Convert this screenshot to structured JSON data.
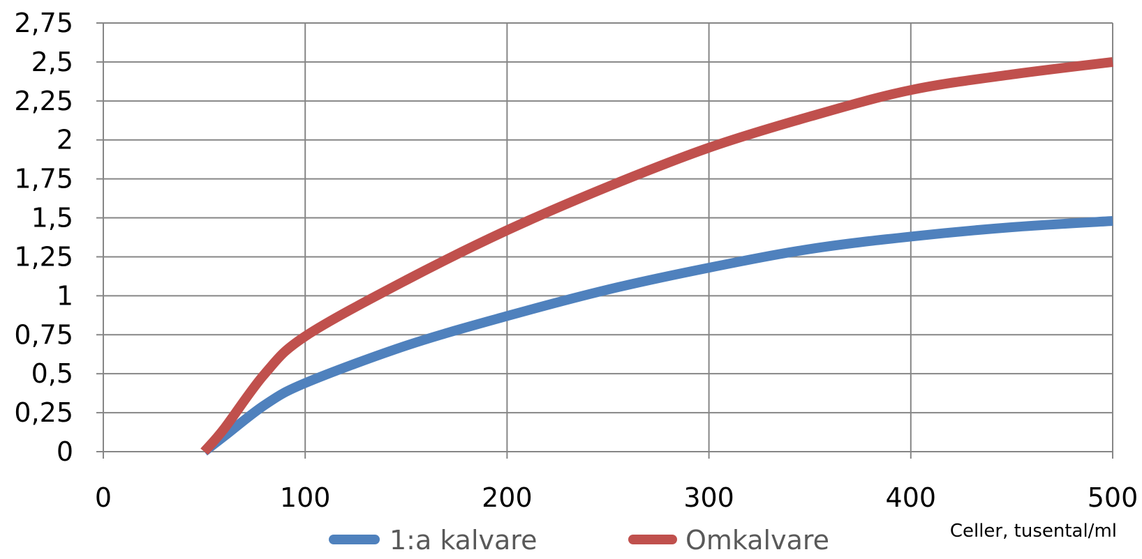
{
  "chart_data": {
    "type": "line",
    "xlabel": "Celler, tusental/ml",
    "ylabel": "",
    "xlim": [
      0,
      500
    ],
    "ylim": [
      0,
      2.75
    ],
    "x_ticks": [
      0,
      100,
      200,
      300,
      400,
      500
    ],
    "y_ticks": [
      0,
      0.25,
      0.5,
      0.75,
      1,
      1.25,
      1.5,
      1.75,
      2,
      2.25,
      2.5,
      2.75
    ],
    "x_tick_labels": [
      "0",
      "100",
      "200",
      "300",
      "400",
      "500"
    ],
    "y_tick_labels": [
      "0",
      "0,25",
      "0,5",
      "0,75",
      "1",
      "1,25",
      "1,5",
      "1,75",
      "2",
      "2,25",
      "2,5",
      "2,75"
    ],
    "grid": true,
    "legend_position": "bottom",
    "series": [
      {
        "name": "1:a kalvare",
        "color": "#4F81BD",
        "x": [
          50,
          60,
          80,
          100,
          150,
          200,
          250,
          300,
          350,
          400,
          450,
          500
        ],
        "y": [
          0,
          0.1,
          0.3,
          0.44,
          0.68,
          0.87,
          1.04,
          1.18,
          1.3,
          1.38,
          1.44,
          1.48
        ]
      },
      {
        "name": "Omkalvare",
        "color": "#C0504D",
        "x": [
          50,
          60,
          80,
          100,
          150,
          200,
          250,
          300,
          350,
          400,
          450,
          500
        ],
        "y": [
          0,
          0.15,
          0.5,
          0.74,
          1.1,
          1.42,
          1.7,
          1.95,
          2.15,
          2.32,
          2.42,
          2.5
        ]
      }
    ]
  }
}
